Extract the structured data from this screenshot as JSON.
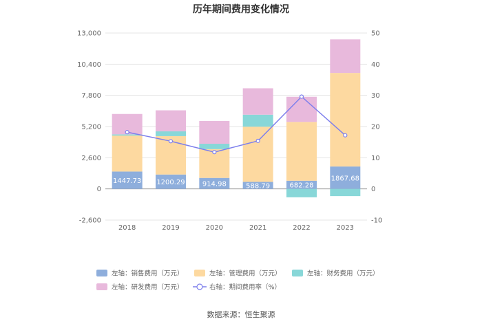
{
  "chart_data": {
    "type": "bar",
    "title": "历年期间费用变化情况",
    "source": "数据来源：恒生聚源",
    "categories": [
      "2018",
      "2019",
      "2020",
      "2021",
      "2022",
      "2023"
    ],
    "y_left": {
      "min": -2600,
      "max": 13000,
      "ticks": [
        "-2,600",
        "0",
        "2,600",
        "5,200",
        "7,800",
        "10,400",
        "13,000"
      ]
    },
    "y_right": {
      "min": -10,
      "max": 50,
      "ticks": [
        "-10",
        "0",
        "10",
        "20",
        "30",
        "40",
        "50"
      ]
    },
    "series": [
      {
        "name": "左轴：销售费用（万元）",
        "color": "#8eaedc",
        "axis": "left",
        "type": "bar",
        "values": [
          1447.73,
          1200.29,
          914.98,
          588.79,
          682.28,
          1867.68
        ],
        "labels": [
          "1447.73",
          "1200.29",
          "914.98",
          "588.79",
          "682.28",
          "1867.68"
        ]
      },
      {
        "name": "左轴：管理费用（万元）",
        "color": "#fdd9a0",
        "axis": "left",
        "type": "bar",
        "values": [
          3000,
          3200,
          2400,
          4600,
          4900,
          7800
        ]
      },
      {
        "name": "左轴：财务费用（万元）",
        "color": "#88d7d8",
        "axis": "left",
        "type": "bar",
        "values": [
          100,
          400,
          450,
          1000,
          -700,
          -600
        ]
      },
      {
        "name": "左轴：研发费用（万元）",
        "color": "#e8b9dc",
        "axis": "left",
        "type": "bar",
        "values": [
          1700,
          1750,
          1900,
          2200,
          2100,
          2800
        ]
      },
      {
        "name": "右轴：期间费用率（%）",
        "color": "#7d7fec",
        "axis": "right",
        "type": "line",
        "values": [
          18.2,
          15.3,
          11.8,
          15.4,
          29.6,
          17.2
        ]
      }
    ],
    "grid": true,
    "legend_position": "bottom"
  }
}
